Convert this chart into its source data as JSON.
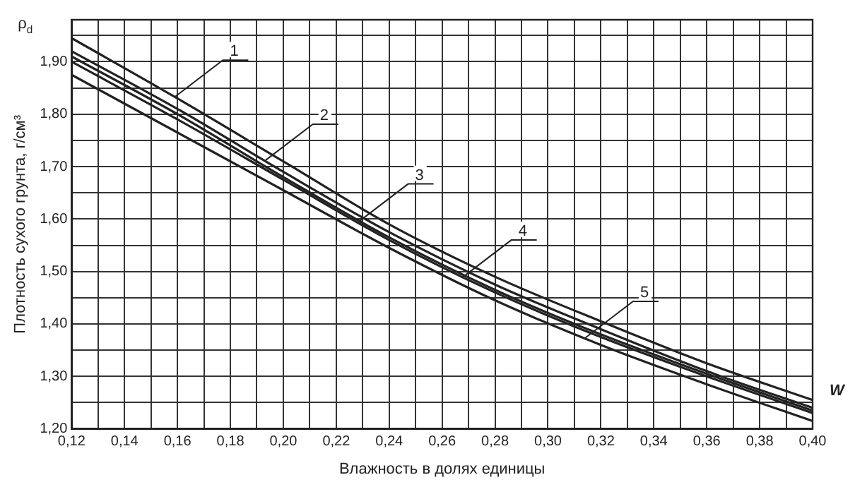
{
  "chart_data": {
    "type": "line",
    "xlabel": "Влажность в долях единицы",
    "ylabel": "Плотность сухого грунта, г/см³",
    "x": [
      0.12,
      0.16,
      0.2,
      0.24,
      0.28,
      0.32,
      0.36,
      0.4
    ],
    "series": [
      {
        "color": "#222222",
        "values": [
          1.945,
          1.83,
          1.71,
          1.59,
          1.49,
          1.405,
          1.325,
          1.255
        ]
      },
      {
        "color": "#222222",
        "values": [
          1.92,
          1.81,
          1.69,
          1.575,
          1.475,
          1.39,
          1.31,
          1.24
        ]
      },
      {
        "color": "#222222",
        "values": [
          1.91,
          1.8,
          1.68,
          1.565,
          1.465,
          1.38,
          1.305,
          1.235
        ]
      },
      {
        "color": "#222222",
        "values": [
          1.9,
          1.79,
          1.675,
          1.56,
          1.46,
          1.375,
          1.3,
          1.23
        ]
      },
      {
        "color": "#222222",
        "values": [
          1.875,
          1.765,
          1.655,
          1.545,
          1.445,
          1.36,
          1.285,
          1.215
        ]
      }
    ],
    "xlim": [
      0.12,
      0.4
    ],
    "xticks": [
      {
        "value": 0.12,
        "label": "0,12"
      },
      {
        "value": 0.13,
        "label": null
      },
      {
        "value": 0.14,
        "label": "0,14"
      },
      {
        "value": 0.15,
        "label": null
      },
      {
        "value": 0.16,
        "label": "0,16"
      },
      {
        "value": 0.17,
        "label": null
      },
      {
        "value": 0.18,
        "label": "0,18"
      },
      {
        "value": 0.19,
        "label": null
      },
      {
        "value": 0.2,
        "label": "0,20"
      },
      {
        "value": 0.21,
        "label": null
      },
      {
        "value": 0.22,
        "label": "0,22"
      },
      {
        "value": 0.23,
        "label": null
      },
      {
        "value": 0.24,
        "label": "0,24"
      },
      {
        "value": 0.25,
        "label": null
      },
      {
        "value": 0.26,
        "label": "0,26"
      },
      {
        "value": 0.27,
        "label": null
      },
      {
        "value": 0.28,
        "label": "0,28"
      },
      {
        "value": 0.29,
        "label": null
      },
      {
        "value": 0.3,
        "label": "0,30"
      },
      {
        "value": 0.31,
        "label": null
      },
      {
        "value": 0.32,
        "label": "0,32"
      },
      {
        "value": 0.33,
        "label": null
      },
      {
        "value": 0.34,
        "label": "0,34"
      },
      {
        "value": 0.35,
        "label": null
      },
      {
        "value": 0.36,
        "label": "0,36"
      },
      {
        "value": 0.37,
        "label": null
      },
      {
        "value": 0.38,
        "label": "0,38"
      },
      {
        "value": 0.39,
        "label": null
      },
      {
        "value": 0.4,
        "label": "0,40"
      }
    ],
    "ylim": [
      1.2,
      1.98
    ],
    "yticks": [
      {
        "value": 1.2,
        "label": "1,20"
      },
      {
        "value": 1.25,
        "label": null
      },
      {
        "value": 1.3,
        "label": "1,30"
      },
      {
        "value": 1.35,
        "label": null
      },
      {
        "value": 1.4,
        "label": "1,40"
      },
      {
        "value": 1.45,
        "label": null
      },
      {
        "value": 1.5,
        "label": "1,50"
      },
      {
        "value": 1.55,
        "label": null
      },
      {
        "value": 1.6,
        "label": "1,60"
      },
      {
        "value": 1.65,
        "label": null
      },
      {
        "value": 1.7,
        "label": "1,70"
      },
      {
        "value": 1.75,
        "label": null
      },
      {
        "value": 1.8,
        "label": "1,80"
      },
      {
        "value": 1.85,
        "label": null
      },
      {
        "value": 1.9,
        "label": "1,90"
      },
      {
        "value": 1.95,
        "label": null
      }
    ],
    "grid": true,
    "legend": false,
    "marker": "none",
    "line_style": "solid",
    "annotations": [
      "ρ$_{d}$",
      "W",
      {
        "text": "1",
        "x": 0.159,
        "y": 1.833
      },
      {
        "text": "2",
        "x": 0.193,
        "y": 1.711
      },
      {
        "text": "3",
        "x": 0.229,
        "y": 1.597
      },
      {
        "text": "4",
        "x": 0.268,
        "y": 1.49
      },
      {
        "text": "5",
        "x": 0.314,
        "y": 1.373
      }
    ]
  }
}
